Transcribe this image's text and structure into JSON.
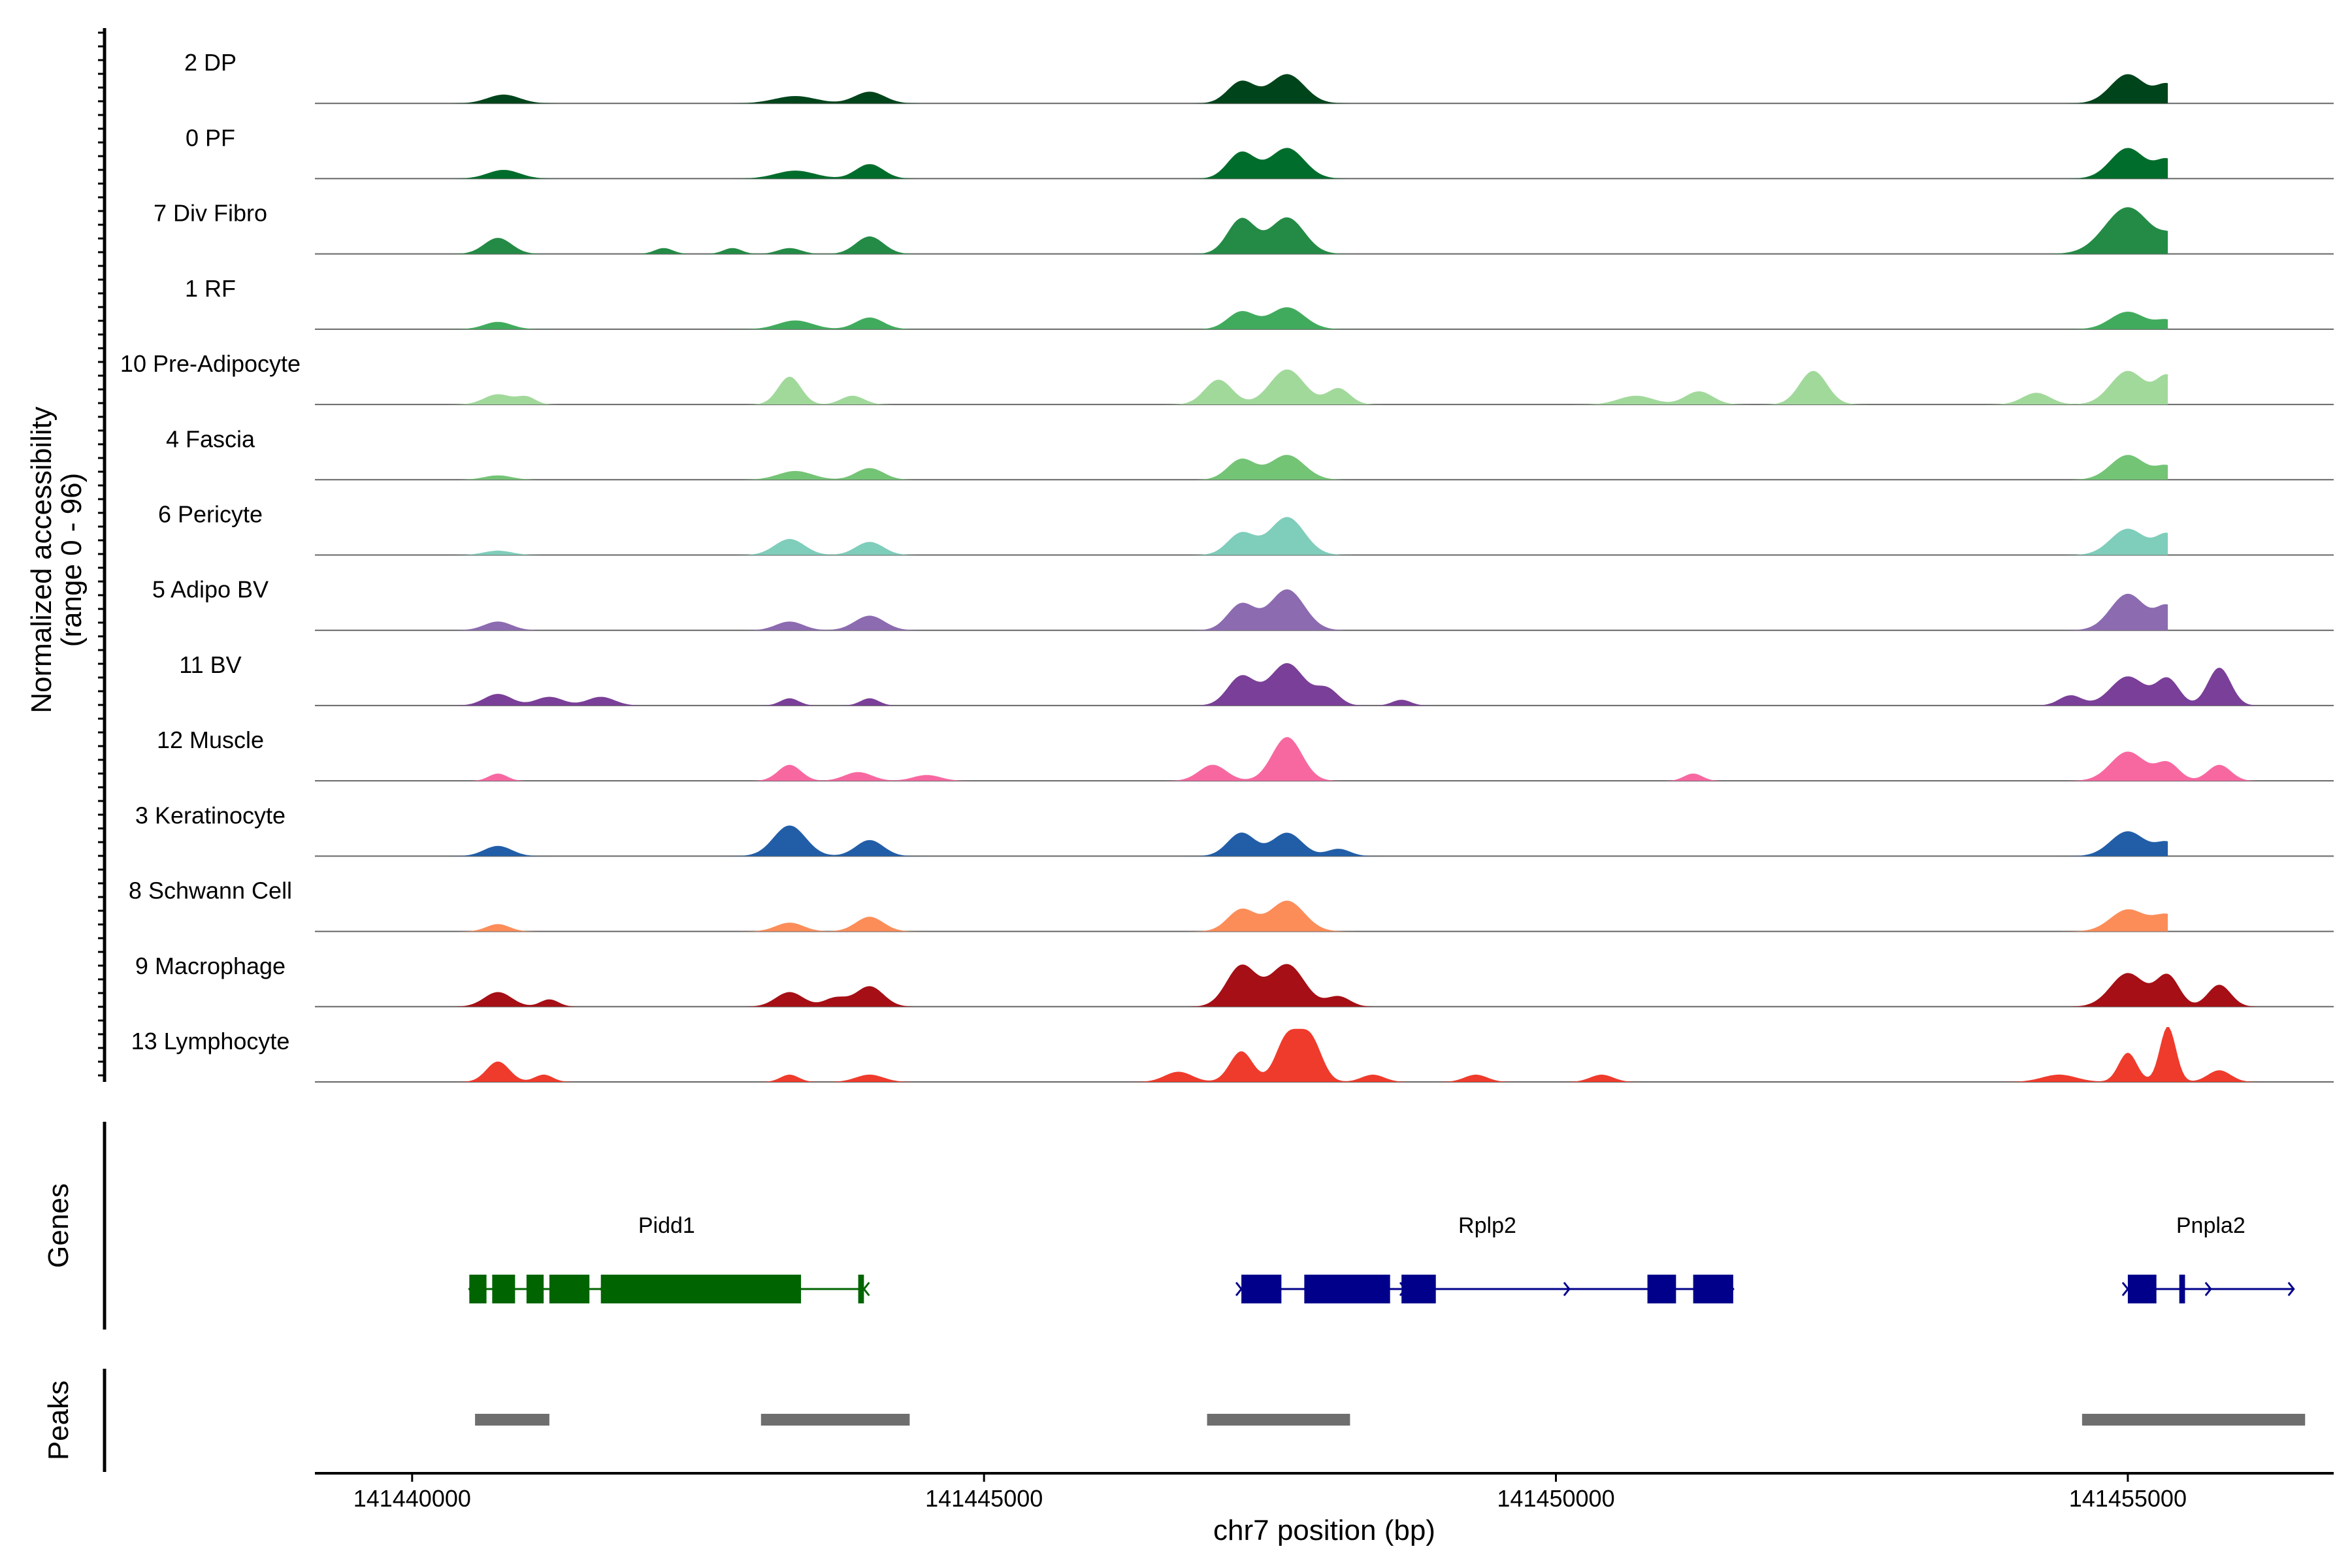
{
  "chart_data": {
    "type": "area",
    "title": "",
    "xlabel": "chr7 position (bp)",
    "ylabel": "Normalized accessibility",
    "ylabel_range": "(range 0 - 96)",
    "yrange": [
      0,
      96
    ],
    "xlim": [
      141439150,
      141456800
    ],
    "xticks": [
      141440000,
      141445000,
      141450000,
      141455000
    ],
    "xtick_labels": [
      "141440000",
      "141445000",
      "141450000",
      "141455000"
    ],
    "grid": false,
    "tracks": [
      {
        "name": "2 DP",
        "color": "#00441b",
        "extent": [
          141439950,
          141455350
        ],
        "peaks": [
          [
            141440800,
            12,
            140
          ],
          [
            141443350,
            10,
            180
          ],
          [
            141444000,
            16,
            130
          ],
          [
            141447250,
            30,
            120
          ],
          [
            141447650,
            40,
            150
          ],
          [
            141455000,
            40,
            150
          ],
          [
            141455350,
            25,
            100
          ],
          [
            141455700,
            15,
            100
          ]
        ]
      },
      {
        "name": "0 PF",
        "color": "#006d2c",
        "extent": [
          141439950,
          141455350
        ],
        "peaks": [
          [
            141440800,
            12,
            140
          ],
          [
            141443350,
            11,
            170
          ],
          [
            141444000,
            20,
            120
          ],
          [
            141447250,
            36,
            120
          ],
          [
            141447650,
            42,
            150
          ],
          [
            141455000,
            42,
            150
          ],
          [
            141455350,
            25,
            100
          ],
          [
            141455700,
            12,
            100
          ]
        ]
      },
      {
        "name": "7 Div Fibro",
        "color": "#238b45",
        "extent": [
          141439950,
          141455350
        ],
        "peaks": [
          [
            141440750,
            22,
            120
          ],
          [
            141442200,
            8,
            80
          ],
          [
            141442800,
            8,
            80
          ],
          [
            141443300,
            8,
            100
          ],
          [
            141444000,
            24,
            120
          ],
          [
            141447250,
            48,
            120
          ],
          [
            141447650,
            50,
            150
          ],
          [
            141455000,
            64,
            200
          ],
          [
            141455400,
            20,
            100
          ],
          [
            141455700,
            12,
            80
          ]
        ]
      },
      {
        "name": "1 RF",
        "color": "#41ab5d",
        "extent": [
          141439950,
          141455350
        ],
        "peaks": [
          [
            141440750,
            10,
            120
          ],
          [
            141443350,
            12,
            150
          ],
          [
            141444000,
            16,
            120
          ],
          [
            141447250,
            24,
            120
          ],
          [
            141447650,
            30,
            150
          ],
          [
            141455000,
            24,
            150
          ],
          [
            141455350,
            12,
            100
          ],
          [
            141455700,
            10,
            80
          ]
        ]
      },
      {
        "name": "10 Pre-Adipocyte",
        "color": "#a1d99b",
        "extent": [
          141439950,
          141455350
        ],
        "peaks": [
          [
            141440750,
            14,
            120
          ],
          [
            141441000,
            10,
            80
          ],
          [
            141443300,
            38,
            100
          ],
          [
            141443850,
            12,
            100
          ],
          [
            141447050,
            34,
            120
          ],
          [
            141447650,
            48,
            150
          ],
          [
            141448100,
            22,
            100
          ],
          [
            141450700,
            12,
            150
          ],
          [
            141451250,
            18,
            120
          ],
          [
            141452250,
            46,
            120
          ],
          [
            141454200,
            16,
            120
          ],
          [
            141455000,
            46,
            150
          ],
          [
            141455350,
            38,
            100
          ],
          [
            141455800,
            42,
            140
          ],
          [
            141456400,
            14,
            150
          ]
        ]
      },
      {
        "name": "4 Fascia",
        "color": "#74c476",
        "extent": [
          141439950,
          141455350
        ],
        "peaks": [
          [
            141440750,
            6,
            120
          ],
          [
            141443350,
            12,
            150
          ],
          [
            141444000,
            16,
            120
          ],
          [
            141447250,
            28,
            120
          ],
          [
            141447650,
            34,
            150
          ],
          [
            141455000,
            34,
            150
          ],
          [
            141455350,
            18,
            100
          ],
          [
            141455700,
            12,
            80
          ]
        ]
      },
      {
        "name": "6 Pericyte",
        "color": "#7fcdbb",
        "extent": [
          141439950,
          141455350
        ],
        "peaks": [
          [
            141440750,
            6,
            120
          ],
          [
            141443300,
            22,
            130
          ],
          [
            141444000,
            18,
            120
          ],
          [
            141447250,
            30,
            120
          ],
          [
            141447650,
            52,
            150
          ],
          [
            141455000,
            36,
            150
          ],
          [
            141455350,
            28,
            100
          ],
          [
            141455800,
            24,
            120
          ]
        ]
      },
      {
        "name": "5 Adipo BV",
        "color": "#8c6bb1",
        "extent": [
          141439950,
          141455350
        ],
        "peaks": [
          [
            141440750,
            12,
            120
          ],
          [
            141443300,
            12,
            120
          ],
          [
            141444000,
            20,
            130
          ],
          [
            141447250,
            36,
            120
          ],
          [
            141447650,
            56,
            150
          ],
          [
            141455000,
            50,
            150
          ],
          [
            141455350,
            32,
            100
          ],
          [
            141455800,
            30,
            100
          ]
        ]
      },
      {
        "name": "11 BV",
        "color": "#7a3f98",
        "extent": [
          141439700,
          141456300
        ],
        "peaks": [
          [
            141440750,
            16,
            120
          ],
          [
            141441200,
            12,
            120
          ],
          [
            141441650,
            12,
            120
          ],
          [
            141443300,
            10,
            80
          ],
          [
            141444000,
            10,
            80
          ],
          [
            141447250,
            40,
            120
          ],
          [
            141447650,
            58,
            150
          ],
          [
            141448000,
            22,
            100
          ],
          [
            141448650,
            8,
            80
          ],
          [
            141455000,
            40,
            150
          ],
          [
            141455350,
            36,
            100
          ],
          [
            141455800,
            52,
            100
          ],
          [
            141454500,
            14,
            100
          ]
        ]
      },
      {
        "name": "12 Muscle",
        "color": "#f768a1",
        "extent": [
          141439700,
          141456300
        ],
        "peaks": [
          [
            141440750,
            10,
            80
          ],
          [
            141443300,
            22,
            100
          ],
          [
            141443900,
            12,
            120
          ],
          [
            141444500,
            8,
            120
          ],
          [
            141447000,
            22,
            120
          ],
          [
            141447650,
            60,
            130
          ],
          [
            141451200,
            10,
            80
          ],
          [
            141455000,
            40,
            150
          ],
          [
            141455350,
            24,
            100
          ],
          [
            141455800,
            22,
            100
          ]
        ]
      },
      {
        "name": "3 Keratinocyte",
        "color": "#225ea8",
        "extent": [
          141439950,
          141455350
        ],
        "peaks": [
          [
            141440750,
            14,
            120
          ],
          [
            141443300,
            42,
            140
          ],
          [
            141444000,
            22,
            120
          ],
          [
            141447250,
            32,
            120
          ],
          [
            141447650,
            32,
            130
          ],
          [
            141448100,
            10,
            100
          ],
          [
            141455000,
            34,
            150
          ],
          [
            141455350,
            18,
            100
          ],
          [
            141455700,
            10,
            80
          ]
        ]
      },
      {
        "name": "8 Schwann Cell",
        "color": "#fc8d59",
        "extent": [
          141439950,
          141455350
        ],
        "peaks": [
          [
            141440750,
            10,
            100
          ],
          [
            141443300,
            12,
            120
          ],
          [
            141444000,
            20,
            120
          ],
          [
            141447250,
            30,
            120
          ],
          [
            141447650,
            42,
            150
          ],
          [
            141455000,
            30,
            150
          ],
          [
            141455350,
            22,
            120
          ],
          [
            141455800,
            22,
            140
          ]
        ]
      },
      {
        "name": "9 Macrophage",
        "color": "#a50f15",
        "extent": [
          141439700,
          141456300
        ],
        "peaks": [
          [
            141440750,
            20,
            120
          ],
          [
            141441200,
            10,
            80
          ],
          [
            141443300,
            20,
            120
          ],
          [
            141443700,
            12,
            100
          ],
          [
            141444000,
            28,
            120
          ],
          [
            141447250,
            56,
            130
          ],
          [
            141447650,
            58,
            150
          ],
          [
            141448100,
            14,
            100
          ],
          [
            141455000,
            46,
            150
          ],
          [
            141455350,
            42,
            100
          ],
          [
            141455800,
            30,
            100
          ]
        ]
      },
      {
        "name": "13 Lymphocyte",
        "color": "#ef3b2c",
        "extent": [
          141439700,
          141456300
        ],
        "peaks": [
          [
            141440750,
            28,
            100
          ],
          [
            141441150,
            10,
            80
          ],
          [
            141443300,
            10,
            80
          ],
          [
            141444000,
            10,
            120
          ],
          [
            141446700,
            14,
            120
          ],
          [
            141447250,
            42,
            100
          ],
          [
            141447650,
            60,
            100
          ],
          [
            141447850,
            60,
            100
          ],
          [
            141448400,
            10,
            100
          ],
          [
            141449300,
            10,
            100
          ],
          [
            141450400,
            10,
            100
          ],
          [
            141454400,
            10,
            150
          ],
          [
            141455000,
            40,
            80
          ],
          [
            141455350,
            76,
            70
          ],
          [
            141455800,
            16,
            100
          ]
        ]
      }
    ],
    "genes": [
      {
        "name": "Pidd1",
        "strand": "-",
        "start": 141440500,
        "end": 141443950,
        "color": "#006400",
        "exons": [
          [
            141440500,
            141440650
          ],
          [
            141440700,
            141440900
          ],
          [
            141441000,
            141441150
          ],
          [
            141441200,
            141441550
          ],
          [
            141441650,
            141443400
          ],
          [
            141443900,
            141443950
          ]
        ]
      },
      {
        "name": "Rplp2",
        "strand": "+",
        "start": 141447250,
        "end": 141451550,
        "color": "#00008b",
        "exons": [
          [
            141447250,
            141447600
          ],
          [
            141447800,
            141448550
          ],
          [
            141448650,
            141448950
          ],
          [
            141450800,
            141451050
          ],
          [
            141451200,
            141451550
          ]
        ]
      },
      {
        "name": "Pnpla2",
        "strand": "+",
        "start": 141455000,
        "end": 141456450,
        "color": "#00008b",
        "exons": [
          [
            141455000,
            141455250
          ],
          [
            141455450,
            141455500
          ]
        ]
      }
    ],
    "peaks": [
      [
        141440550,
        141441200
      ],
      [
        141443050,
        141444350
      ],
      [
        141446950,
        141448200
      ],
      [
        141454600,
        141456550
      ]
    ],
    "panel_labels": {
      "genes": "Genes",
      "peaks": "Peaks"
    }
  }
}
